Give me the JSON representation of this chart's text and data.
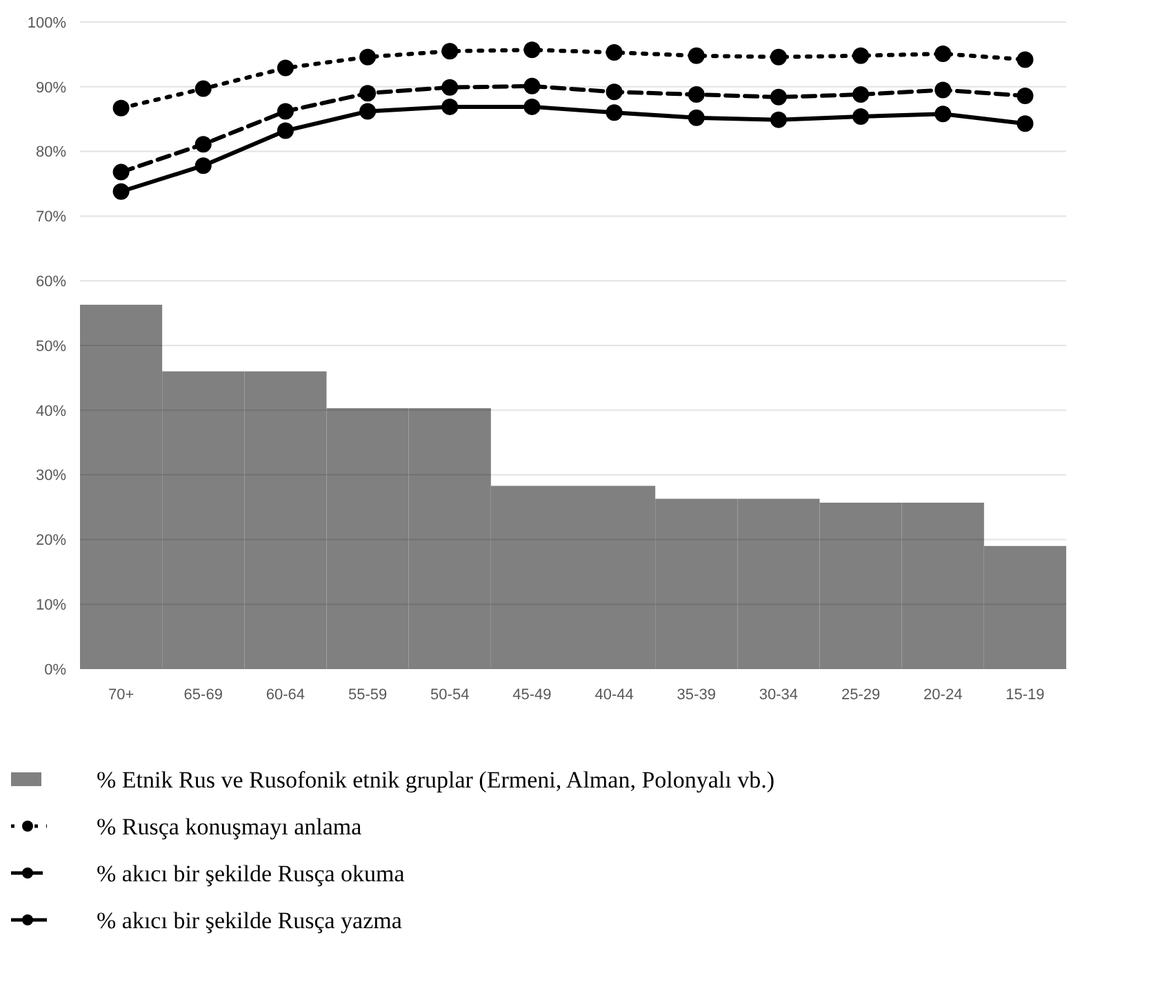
{
  "chart_data": {
    "type": "bar",
    "categories": [
      "70+",
      "65-69",
      "60-64",
      "55-59",
      "50-54",
      "45-49",
      "40-44",
      "35-39",
      "30-34",
      "25-29",
      "20-24",
      "15-19"
    ],
    "series": [
      {
        "name": "% Etnik Rus ve Rusofonik etnik gruplar (Ermeni, Alman, Polonyalı vb.)",
        "color": "#808080",
        "values": [
          56.3,
          46,
          46,
          40.3,
          40.3,
          28.3,
          28.3,
          26.3,
          26.3,
          25.7,
          25.7,
          19
        ]
      },
      {
        "name": "% Rusça konuşmayı anlama",
        "type": "line",
        "line_style": "dotted",
        "color": "#000000",
        "values": [
          86.7,
          89.7,
          92.9,
          94.6,
          95.5,
          95.7,
          95.3,
          94.8,
          94.6,
          94.8,
          95.1,
          94.2
        ]
      },
      {
        "name": "% akıcı bir şekilde Rusça okuma",
        "type": "line",
        "line_style": "dashed",
        "color": "#000000",
        "values": [
          76.8,
          81.1,
          86.2,
          89.0,
          89.9,
          90.1,
          89.2,
          88.8,
          88.4,
          88.8,
          89.5,
          88.6
        ]
      },
      {
        "name": "% akıcı bir şekilde Rusça yazma",
        "type": "line",
        "line_style": "solid",
        "color": "#000000",
        "values": [
          73.8,
          77.8,
          83.2,
          86.2,
          86.9,
          86.9,
          86.0,
          85.2,
          84.9,
          85.4,
          85.8,
          84.3
        ]
      }
    ],
    "ylim": [
      0,
      100
    ],
    "yticks": [
      {
        "value": 0,
        "label": "0%"
      },
      {
        "value": 10,
        "label": "10%"
      },
      {
        "value": 20,
        "label": "20%"
      },
      {
        "value": 30,
        "label": "30%"
      },
      {
        "value": 40,
        "label": "40%"
      },
      {
        "value": 50,
        "label": "50%"
      },
      {
        "value": 60,
        "label": "60%"
      },
      {
        "value": 70,
        "label": "70%"
      },
      {
        "value": 80,
        "label": "80%"
      },
      {
        "value": 90,
        "label": "90%"
      },
      {
        "value": 100,
        "label": "100%"
      }
    ],
    "grid": "y",
    "legend": "bottom",
    "marker": "circle"
  }
}
